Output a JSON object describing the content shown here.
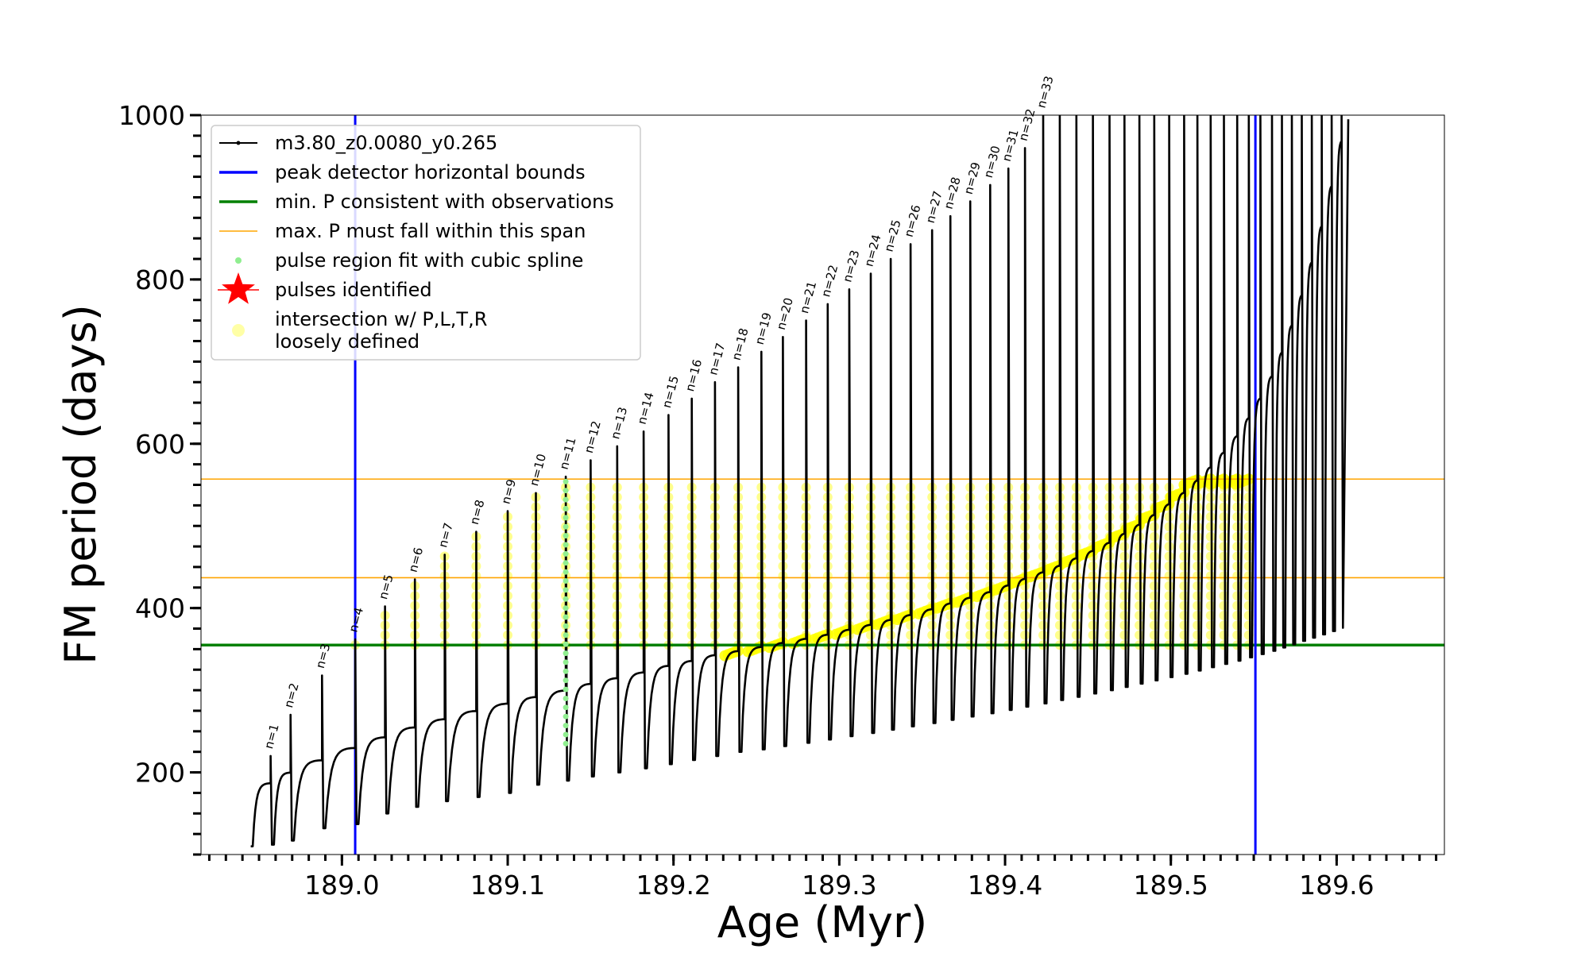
{
  "chart_data": {
    "type": "line",
    "xlabel": "Age (Myr)",
    "ylabel": "FM period (days)",
    "xlim": [
      188.915,
      189.665
    ],
    "ylim": [
      100,
      1000
    ],
    "x_major_ticks": [
      189.0,
      189.1,
      189.2,
      189.3,
      189.4,
      189.5,
      189.6
    ],
    "x_tick_labels": [
      "189.0",
      "189.1",
      "189.2",
      "189.3",
      "189.4",
      "189.5",
      "189.6"
    ],
    "x_minor_step": 0.01,
    "y_major_ticks": [
      200,
      400,
      600,
      800,
      1000
    ],
    "y_tick_labels": [
      "200",
      "400",
      "600",
      "800",
      "1000"
    ],
    "y_minor_step": 25,
    "grid": false,
    "legend_position": "top-left",
    "legend": [
      {
        "key": "model",
        "label": "m3.80_z0.0080_y0.265",
        "color": "#000000",
        "marker": "line-dot"
      },
      {
        "key": "bounds",
        "label": "peak detector horizontal bounds",
        "color": "#0000ff",
        "marker": "thick-line"
      },
      {
        "key": "minp",
        "label": "min. P consistent with observations",
        "color": "#008000",
        "marker": "thick-line"
      },
      {
        "key": "maxp",
        "label": "max. P must fall within this span",
        "color": "#ffa500",
        "marker": "thin-line"
      },
      {
        "key": "spline",
        "label": "pulse region fit with cubic spline",
        "color": "#90ee90",
        "marker": "dot"
      },
      {
        "key": "pulses",
        "label": "pulses identified",
        "color": "#ff0000",
        "marker": "star"
      },
      {
        "key": "intersect",
        "label": [
          "intersection w/ P,L,T,R",
          "loosely defined"
        ],
        "color": "#ffff00",
        "marker": "circle"
      }
    ],
    "vertical_lines": [
      {
        "name": "peak detector horizontal bound",
        "x": 189.008,
        "color": "#0000ff"
      },
      {
        "name": "peak detector horizontal bound",
        "x": 189.551,
        "color": "#0000ff"
      }
    ],
    "horizontal_lines": [
      {
        "name": "min. P consistent with observations",
        "y": 355,
        "color": "#008000"
      },
      {
        "name": "max. P span lower",
        "y": 437,
        "color": "#ffa500"
      },
      {
        "name": "max. P span upper",
        "y": 557,
        "color": "#ffa500"
      }
    ],
    "pulses": [
      {
        "n": 1,
        "x": 188.957,
        "peak": 220,
        "dip": 112,
        "base": 187
      },
      {
        "n": 2,
        "x": 188.969,
        "peak": 270,
        "dip": 117,
        "base": 200
      },
      {
        "n": 3,
        "x": 188.988,
        "peak": 318,
        "dip": 132,
        "base": 215
      },
      {
        "n": 4,
        "x": 189.008,
        "peak": 362,
        "dip": 137,
        "base": 230
      },
      {
        "n": 5,
        "x": 189.026,
        "peak": 402,
        "dip": 150,
        "base": 243
      },
      {
        "n": 6,
        "x": 189.044,
        "peak": 435,
        "dip": 158,
        "base": 255
      },
      {
        "n": 7,
        "x": 189.062,
        "peak": 465,
        "dip": 165,
        "base": 265
      },
      {
        "n": 8,
        "x": 189.081,
        "peak": 493,
        "dip": 170,
        "base": 275
      },
      {
        "n": 9,
        "x": 189.1,
        "peak": 518,
        "dip": 175,
        "base": 284
      },
      {
        "n": 10,
        "x": 189.117,
        "peak": 540,
        "dip": 185,
        "base": 292
      },
      {
        "n": 11,
        "x": 189.135,
        "peak": 560,
        "dip": 190,
        "base": 300
      },
      {
        "n": 12,
        "x": 189.15,
        "peak": 580,
        "dip": 195,
        "base": 308
      },
      {
        "n": 13,
        "x": 189.166,
        "peak": 597,
        "dip": 200,
        "base": 315
      },
      {
        "n": 14,
        "x": 189.182,
        "peak": 615,
        "dip": 205,
        "base": 322
      },
      {
        "n": 15,
        "x": 189.197,
        "peak": 635,
        "dip": 210,
        "base": 330
      },
      {
        "n": 16,
        "x": 189.211,
        "peak": 655,
        "dip": 215,
        "base": 336
      },
      {
        "n": 17,
        "x": 189.225,
        "peak": 675,
        "dip": 220,
        "base": 343
      },
      {
        "n": 18,
        "x": 189.239,
        "peak": 693,
        "dip": 225,
        "base": 348
      },
      {
        "n": 19,
        "x": 189.253,
        "peak": 712,
        "dip": 228,
        "base": 353
      },
      {
        "n": 20,
        "x": 189.266,
        "peak": 730,
        "dip": 232,
        "base": 358
      },
      {
        "n": 21,
        "x": 189.28,
        "peak": 750,
        "dip": 236,
        "base": 363
      },
      {
        "n": 22,
        "x": 189.293,
        "peak": 770,
        "dip": 240,
        "base": 368
      },
      {
        "n": 23,
        "x": 189.306,
        "peak": 788,
        "dip": 244,
        "base": 374
      },
      {
        "n": 24,
        "x": 189.319,
        "peak": 807,
        "dip": 248,
        "base": 380
      },
      {
        "n": 25,
        "x": 189.331,
        "peak": 825,
        "dip": 252,
        "base": 386
      },
      {
        "n": 26,
        "x": 189.343,
        "peak": 843,
        "dip": 256,
        "base": 392
      },
      {
        "n": 27,
        "x": 189.356,
        "peak": 860,
        "dip": 260,
        "base": 399
      },
      {
        "n": 28,
        "x": 189.367,
        "peak": 877,
        "dip": 264,
        "base": 406
      },
      {
        "n": 29,
        "x": 189.379,
        "peak": 895,
        "dip": 268,
        "base": 413
      },
      {
        "n": 30,
        "x": 189.391,
        "peak": 915,
        "dip": 272,
        "base": 420
      },
      {
        "n": 31,
        "x": 189.402,
        "peak": 935,
        "dip": 276,
        "base": 428
      },
      {
        "n": 32,
        "x": 189.412,
        "peak": 960,
        "dip": 280,
        "base": 436
      },
      {
        "n": 33,
        "x": 189.423,
        "peak": 1000,
        "dip": 284,
        "base": 444
      },
      {
        "x": 189.433,
        "peak": 1000,
        "dip": 288,
        "base": 452
      },
      {
        "x": 189.443,
        "peak": 1000,
        "dip": 292,
        "base": 461
      },
      {
        "x": 189.453,
        "peak": 1000,
        "dip": 296,
        "base": 470
      },
      {
        "x": 189.463,
        "peak": 1000,
        "dip": 300,
        "base": 480
      },
      {
        "x": 189.472,
        "peak": 1000,
        "dip": 304,
        "base": 491
      },
      {
        "x": 189.481,
        "peak": 1000,
        "dip": 308,
        "base": 502
      },
      {
        "x": 189.49,
        "peak": 1000,
        "dip": 312,
        "base": 514
      },
      {
        "x": 189.499,
        "peak": 1000,
        "dip": 316,
        "base": 527
      },
      {
        "x": 189.508,
        "peak": 1000,
        "dip": 320,
        "base": 541
      },
      {
        "x": 189.516,
        "peak": 1000,
        "dip": 324,
        "base": 556
      },
      {
        "x": 189.524,
        "peak": 1000,
        "dip": 328,
        "base": 572
      },
      {
        "x": 189.532,
        "peak": 1000,
        "dip": 332,
        "base": 590
      },
      {
        "x": 189.54,
        "peak": 1000,
        "dip": 336,
        "base": 610
      },
      {
        "x": 189.547,
        "peak": 1000,
        "dip": 340,
        "base": 632
      },
      {
        "x": 189.554,
        "peak": 1000,
        "dip": 344,
        "base": 656
      },
      {
        "x": 189.561,
        "peak": 1000,
        "dip": 348,
        "base": 683
      },
      {
        "x": 189.567,
        "peak": 1000,
        "dip": 352,
        "base": 712
      },
      {
        "x": 189.573,
        "peak": 1000,
        "dip": 356,
        "base": 745
      },
      {
        "x": 189.579,
        "peak": 1000,
        "dip": 360,
        "base": 782
      },
      {
        "x": 189.585,
        "peak": 1000,
        "dip": 364,
        "base": 822
      },
      {
        "x": 189.591,
        "peak": 1000,
        "dip": 368,
        "base": 866
      },
      {
        "x": 189.597,
        "peak": 1000,
        "dip": 372,
        "base": 915
      },
      {
        "x": 189.603,
        "peak": 1000,
        "dip": 376,
        "base": 970
      }
    ],
    "track_start": {
      "x": 188.945,
      "y": 110
    },
    "track_end": {
      "x": 189.607,
      "y": 995
    },
    "spline_fit_pulse": {
      "x": 189.135,
      "y_from": 235,
      "y_to": 555
    },
    "intersection_region": {
      "p_min": 355,
      "p_max": 557,
      "x_from": 189.008,
      "x_to": 189.551
    }
  }
}
